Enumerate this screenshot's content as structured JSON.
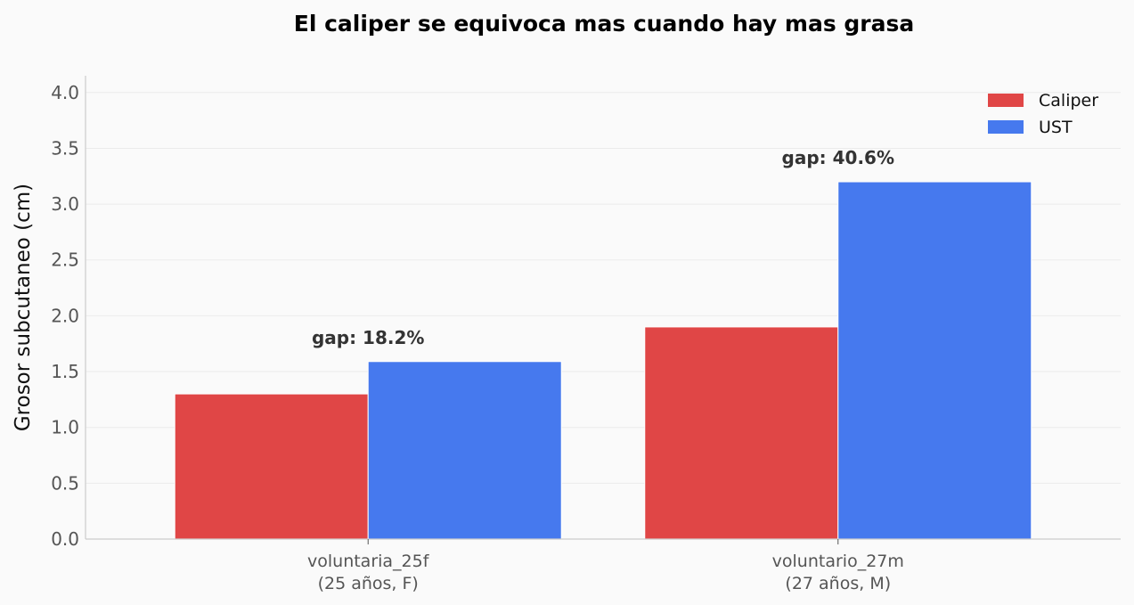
{
  "chart_data": {
    "type": "bar",
    "title": "El caliper se equivoca mas cuando hay mas grasa",
    "ylabel": "Grosor subcutaneo (cm)",
    "xlabel": "",
    "ylim": [
      0,
      4.15
    ],
    "yticks": [
      "0.0",
      "0.5",
      "1.0",
      "1.5",
      "2.0",
      "2.5",
      "3.0",
      "3.5",
      "4.0"
    ],
    "grid": true,
    "legend_position": "top-right",
    "categories": [
      {
        "line1": "voluntaria_25f",
        "line2": "(25 años, F)"
      },
      {
        "line1": "voluntario_27m",
        "line2": "(27 años, M)"
      }
    ],
    "series": [
      {
        "name": "Caliper",
        "color": "#e04646",
        "values": [
          1.3,
          1.9
        ]
      },
      {
        "name": "UST",
        "color": "#4679ee",
        "values": [
          1.59,
          3.2
        ]
      }
    ],
    "annotations": [
      "gap: 18.2%",
      "gap: 40.6%"
    ]
  }
}
